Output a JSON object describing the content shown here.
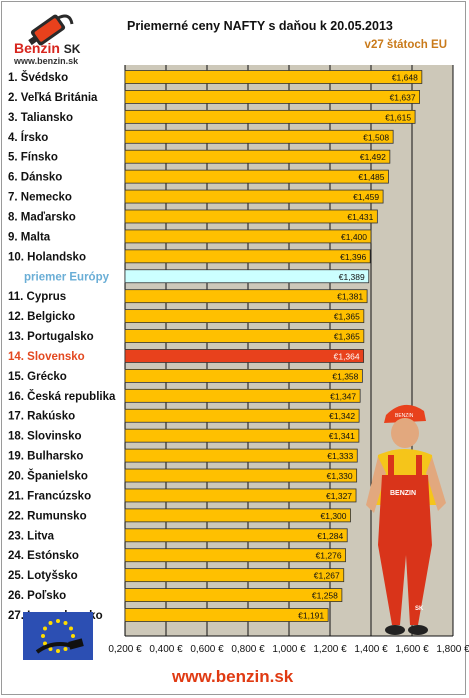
{
  "header": {
    "logo_text": "Benzin",
    "logo_suffix": "SK",
    "logo_url": "www.benzin.sk",
    "title": "Priemerné ceny NAFTY s daňou k 20.05.2013",
    "subtitle": "v27 štátoch EU"
  },
  "footer": {
    "url": "www.benzin.sk"
  },
  "mechanic": {
    "cap_text": "BENZIN",
    "shirt_text": "BENZIN",
    "pants_text": "SK"
  },
  "colors": {
    "bar": "#ffc000",
    "average_bar": "#ccffff",
    "highlight_bar": "#e8411c",
    "plot_bg": "#cdc8b9",
    "label_blue": "#6aaed6",
    "label_red": "#e3481f"
  },
  "chart_data": {
    "type": "bar",
    "orientation": "horizontal",
    "title": "Priemerné ceny NAFTY s daňou k 20.05.2013",
    "subtitle": "v27 štátoch EU",
    "xlim": [
      0.2,
      1.8
    ],
    "x_ticks": [
      "0,200 €",
      "0,400 €",
      "0,600 €",
      "0,800 €",
      "1,000 €",
      "1,200 €",
      "1,400 €",
      "1,600 €",
      "1,800 €"
    ],
    "grid": true,
    "categories": [
      "1. Švédsko",
      "2. Veľká Británia",
      "3. Taliansko",
      "4. Írsko",
      "5. Fínsko",
      "6. Dánsko",
      "7. Nemecko",
      "8. Maďarsko",
      "9. Malta",
      "10. Holandsko",
      "priemer Európy",
      "11. Cyprus",
      "12. Belgicko",
      "13. Portugalsko",
      "14. Slovensko",
      "15. Grécko",
      "16. Česká republika",
      "17. Rakúsko",
      "18. Slovinsko",
      "19. Bulharsko",
      "20. Španielsko",
      "21. Francúzsko",
      "22. Rumunsko",
      "23. Litva",
      "24. Estónsko",
      "25. Lotyšsko",
      "26. Poľsko",
      "27. Luxembursko"
    ],
    "values": [
      1.648,
      1.637,
      1.615,
      1.508,
      1.492,
      1.485,
      1.459,
      1.431,
      1.4,
      1.396,
      1.389,
      1.381,
      1.365,
      1.365,
      1.364,
      1.358,
      1.347,
      1.342,
      1.341,
      1.333,
      1.33,
      1.327,
      1.3,
      1.284,
      1.276,
      1.267,
      1.258,
      1.191
    ],
    "value_labels": [
      "€1,648",
      "€1,637",
      "€1,615",
      "€1,508",
      "€1,492",
      "€1,485",
      "€1,459",
      "€1,431",
      "€1,400",
      "€1,396",
      "€1,389",
      "€1,381",
      "€1,365",
      "€1,365",
      "€1,364",
      "€1,358",
      "€1,347",
      "€1,342",
      "€1,341",
      "€1,333",
      "€1,330",
      "€1,327",
      "€1,300",
      "€1,284",
      "€1,276",
      "€1,267",
      "€1,258",
      "€1,191"
    ],
    "highlight": {
      "average": "priemer Európy",
      "country": "14. Slovensko"
    }
  }
}
